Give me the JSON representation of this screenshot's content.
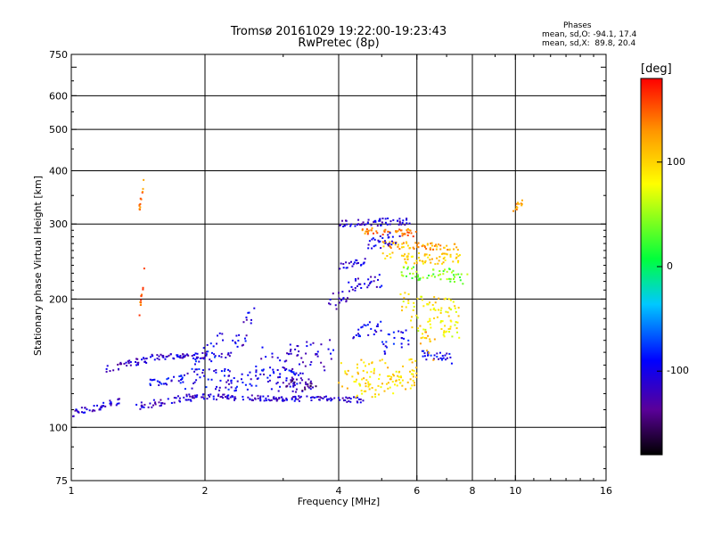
{
  "title_line1": "Tromsø 20161029 19:22:00-19:23:43",
  "title_line2": "RwPretec (8p)",
  "phases": {
    "title": "Phases",
    "line_o": "mean, sd,O: -94.1, 17.4",
    "line_x": "mean, sd,X:  89.8, 20.4"
  },
  "colorbar": {
    "unit": "[deg]",
    "ticks": [
      {
        "label": "100",
        "value": 100
      },
      {
        "label": "0",
        "value": 0
      },
      {
        "label": "-100",
        "value": -100
      }
    ],
    "range": [
      -180,
      180
    ]
  },
  "chart_data": {
    "type": "scatter",
    "xlabel": "Frequency [MHz]",
    "ylabel": "Stationary phase Virtual Height [km]",
    "xscale": "log",
    "yscale": "log",
    "xlim": [
      1,
      16
    ],
    "ylim": [
      75,
      750
    ],
    "xticks": [
      {
        "label": "1",
        "value": 1
      },
      {
        "label": "2",
        "value": 2
      },
      {
        "label": "4",
        "value": 4
      },
      {
        "label": "6",
        "value": 6
      },
      {
        "label": "8",
        "value": 8
      },
      {
        "label": "10",
        "value": 10
      },
      {
        "label": "16",
        "value": 16
      }
    ],
    "yticks": [
      {
        "label": "750",
        "value": 750
      },
      {
        "label": "600",
        "value": 600
      },
      {
        "label": "500",
        "value": 500
      },
      {
        "label": "400",
        "value": 400
      },
      {
        "label": "300",
        "value": 300
      },
      {
        "label": "200",
        "value": 200
      },
      {
        "label": "100",
        "value": 100
      },
      {
        "label": "75",
        "value": 75
      }
    ],
    "xgrid": [
      2,
      4,
      6,
      8,
      10
    ],
    "ygrid": [
      100,
      200,
      300,
      400,
      500,
      600
    ],
    "grid": true,
    "color_scale": "phase in degrees, -180 (black) to 180 (red)",
    "traces": [
      {
        "f0": 1.0,
        "f1": 1.3,
        "h0": 108,
        "h1": 115,
        "phase": -110,
        "jit": 0.02
      },
      {
        "f0": 1.2,
        "f1": 1.5,
        "h0": 137,
        "h1": 145,
        "phase": -115,
        "jit": 0.02
      },
      {
        "f0": 1.5,
        "f1": 2.3,
        "h0": 146,
        "h1": 148,
        "phase": -110,
        "jit": 0.015
      },
      {
        "f0": 1.4,
        "f1": 1.9,
        "h0": 112,
        "h1": 118,
        "phase": -115,
        "jit": 0.02
      },
      {
        "f0": 1.9,
        "f1": 4.6,
        "h0": 118,
        "h1": 116,
        "phase": -110,
        "jit": 0.015
      },
      {
        "f0": 1.5,
        "f1": 1.8,
        "h0": 127,
        "h1": 130,
        "phase": -100,
        "jit": 0.02
      },
      {
        "f0": 1.8,
        "f1": 3.5,
        "h0": 130,
        "h1": 128,
        "phase": -100,
        "jit": 0.06
      },
      {
        "f0": 1.9,
        "f1": 2.2,
        "h0": 140,
        "h1": 160,
        "phase": -95,
        "jit": 0.06
      },
      {
        "f0": 2.3,
        "f1": 2.6,
        "h0": 150,
        "h1": 185,
        "phase": -105,
        "jit": 0.07
      },
      {
        "f0": 2.6,
        "f1": 3.9,
        "h0": 140,
        "h1": 150,
        "phase": -110,
        "jit": 0.09
      },
      {
        "f0": 3.0,
        "f1": 3.6,
        "h0": 127,
        "h1": 124,
        "phase": -140,
        "jit": 0.03
      },
      {
        "f0": 3.8,
        "f1": 4.2,
        "h0": 195,
        "h1": 205,
        "phase": -110,
        "jit": 0.05
      },
      {
        "f0": 4.0,
        "f1": 4.6,
        "h0": 240,
        "h1": 244,
        "phase": -105,
        "jit": 0.02
      },
      {
        "f0": 4.3,
        "f1": 5.0,
        "h0": 168,
        "h1": 172,
        "phase": -100,
        "jit": 0.04
      },
      {
        "f0": 4.2,
        "f1": 5.0,
        "h0": 215,
        "h1": 222,
        "phase": -110,
        "jit": 0.04
      },
      {
        "f0": 4.0,
        "f1": 5.8,
        "h0": 300,
        "h1": 305,
        "phase": -110,
        "jit": 0.02
      },
      {
        "f0": 4.0,
        "f1": 6.0,
        "h0": 133,
        "h1": 136,
        "phase": 100,
        "jit": 0.08
      },
      {
        "f0": 4.3,
        "f1": 6.0,
        "h0": 122,
        "h1": 130,
        "phase": 95,
        "jit": 0.06
      },
      {
        "f0": 4.5,
        "f1": 6.0,
        "h0": 288,
        "h1": 286,
        "phase": 140,
        "jit": 0.02
      },
      {
        "f0": 5.0,
        "f1": 7.5,
        "h0": 268,
        "h1": 265,
        "phase": 120,
        "jit": 0.02
      },
      {
        "f0": 5.0,
        "f1": 7.5,
        "h0": 250,
        "h1": 248,
        "phase": 100,
        "jit": 0.03
      },
      {
        "f0": 5.5,
        "f1": 7.8,
        "h0": 232,
        "h1": 225,
        "phase": 40,
        "jit": 0.04
      },
      {
        "f0": 5.5,
        "f1": 7.5,
        "h0": 198,
        "h1": 190,
        "phase": 90,
        "jit": 0.05
      },
      {
        "f0": 6.0,
        "f1": 7.5,
        "h0": 175,
        "h1": 170,
        "phase": 80,
        "jit": 0.05
      },
      {
        "f0": 6.0,
        "f1": 7.2,
        "h0": 148,
        "h1": 145,
        "phase": -100,
        "jit": 0.03
      },
      {
        "f0": 5.8,
        "f1": 6.6,
        "h0": 180,
        "h1": 150,
        "phase": 110,
        "jit": 0.07
      },
      {
        "f0": 5.0,
        "f1": 5.8,
        "h0": 155,
        "h1": 165,
        "phase": -100,
        "jit": 0.05
      },
      {
        "f0": 4.6,
        "f1": 5.5,
        "h0": 270,
        "h1": 280,
        "phase": -100,
        "jit": 0.04
      },
      {
        "f0": 1.42,
        "f1": 1.46,
        "h0": 180,
        "h1": 230,
        "phase": 150,
        "jit": 0.03
      },
      {
        "f0": 1.42,
        "f1": 1.46,
        "h0": 320,
        "h1": 390,
        "phase": 145,
        "jit": 0.03
      },
      {
        "f0": 9.8,
        "f1": 10.5,
        "h0": 325,
        "h1": 340,
        "phase": 120,
        "jit": 0.02
      }
    ]
  }
}
